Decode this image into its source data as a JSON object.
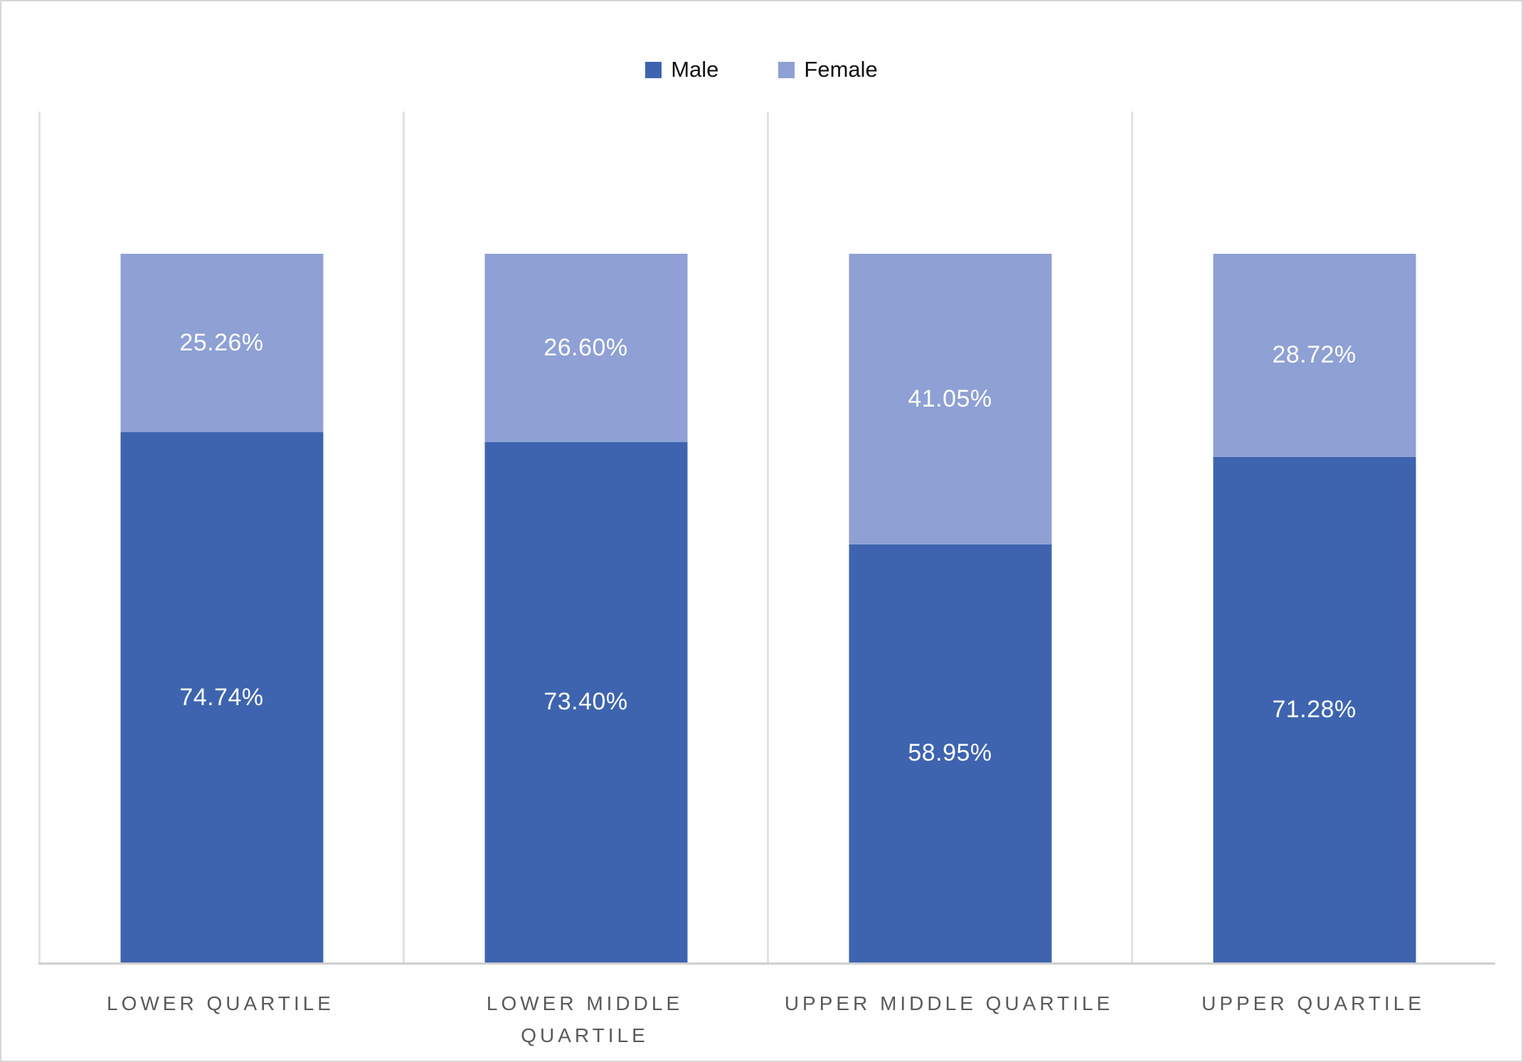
{
  "chart_data": {
    "type": "bar",
    "variant": "stacked-100",
    "title": "",
    "xlabel": "",
    "ylabel": "",
    "ylim": [
      0,
      120
    ],
    "grid": "vertical category separators only, no horizontal gridlines, no value axis labels",
    "legend_position": "top-center",
    "categories": [
      "LOWER QUARTILE",
      "LOWER MIDDLE\nQUARTILE",
      "UPPER MIDDLE QUARTILE",
      "UPPER QUARTILE"
    ],
    "series": [
      {
        "name": "Male",
        "color": "#3e64af",
        "values": [
          74.74,
          73.4,
          58.95,
          71.28
        ],
        "labels": [
          "74.74%",
          "73.40%",
          "58.95%",
          "71.28%"
        ]
      },
      {
        "name": "Female",
        "color": "#8ea0d4",
        "values": [
          25.26,
          26.6,
          41.05,
          28.72
        ],
        "labels": [
          "25.26%",
          "26.60%",
          "41.05%",
          "28.72%"
        ]
      }
    ]
  },
  "legend": {
    "items": [
      {
        "label": "Male",
        "color": "#3e64af"
      },
      {
        "label": "Female",
        "color": "#8ea0d4"
      }
    ]
  },
  "colors": {
    "male": "#3e64af",
    "female": "#8ea0d4",
    "gridline": "#e2e2e2",
    "axis_line": "#cfcfcf",
    "category_label": "#595959",
    "data_label": "#ffffff",
    "frame_border": "#d6d6d6",
    "background": "#ffffff"
  }
}
